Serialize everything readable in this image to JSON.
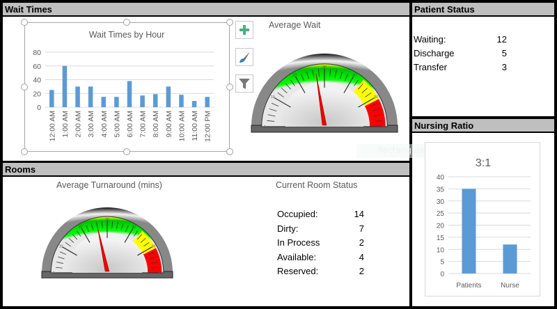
{
  "wait_times": {
    "header": "Wait Times",
    "average_wait_title": "Average Wait",
    "average_wait_gauge": {
      "min": 0,
      "max": 60,
      "value": 27,
      "ticks": [
        "0",
        "10",
        "20",
        "30",
        "40",
        "50",
        "60"
      ]
    },
    "chart_tools": [
      "add-chart-element-icon",
      "chart-styles-icon",
      "chart-filters-icon"
    ]
  },
  "patient_status": {
    "header": "Patient Status",
    "rows": [
      {
        "label": "Waiting:",
        "value": "12"
      },
      {
        "label": "Discharge",
        "value": "5"
      },
      {
        "label": "Transfer",
        "value": "3"
      }
    ]
  },
  "rooms": {
    "header": "Rooms",
    "turnaround_title": "Average Turnaround (mins)",
    "turnaround_gauge": {
      "min": 0,
      "max": 60,
      "value": 26,
      "ticks": [
        "0",
        "10",
        "20",
        "30",
        "40",
        "50",
        "60"
      ]
    },
    "status_title": "Current Room Status",
    "rows": [
      {
        "label": "Occupied:",
        "value": "14"
      },
      {
        "label": "Dirty:",
        "value": "7"
      },
      {
        "label": "In Process",
        "value": "2"
      },
      {
        "label": "Available:",
        "value": "4"
      },
      {
        "label": "Reserved:",
        "value": "2"
      }
    ]
  },
  "nursing_ratio": {
    "header": "Nursing Ratio",
    "overlay_text": "Rectangular Snip"
  },
  "colors": {
    "bar": "#5b9bd5",
    "header": "#bfbfbf",
    "gauge_green": "#00e000",
    "gauge_yellow": "#ffff00",
    "gauge_red": "#ff0000"
  },
  "chart_data": [
    {
      "type": "bar",
      "title": "Wait Times by Hour",
      "categories": [
        "12:00 AM",
        "1:00 AM",
        "2:00 AM",
        "3:00 AM",
        "4:00 AM",
        "5:00 AM",
        "6:00 AM",
        "7:00 AM",
        "8:00 AM",
        "9:00 AM",
        "10:00 AM",
        "11:00 AM",
        "12:00 PM"
      ],
      "values": [
        25,
        60,
        30,
        30,
        15,
        15,
        38,
        17,
        19,
        30,
        18,
        9,
        15
      ],
      "ylim": [
        0,
        80
      ],
      "yticks": [
        "0",
        "20",
        "40",
        "60",
        "80"
      ],
      "grid": true
    },
    {
      "type": "bar",
      "title": "3:1",
      "categories": [
        "Patients",
        "Nurse"
      ],
      "values": [
        35,
        12
      ],
      "ylim": [
        0,
        40
      ],
      "yticks": [
        "0",
        "5",
        "10",
        "15",
        "20",
        "25",
        "30",
        "35",
        "40"
      ],
      "grid": true
    }
  ]
}
